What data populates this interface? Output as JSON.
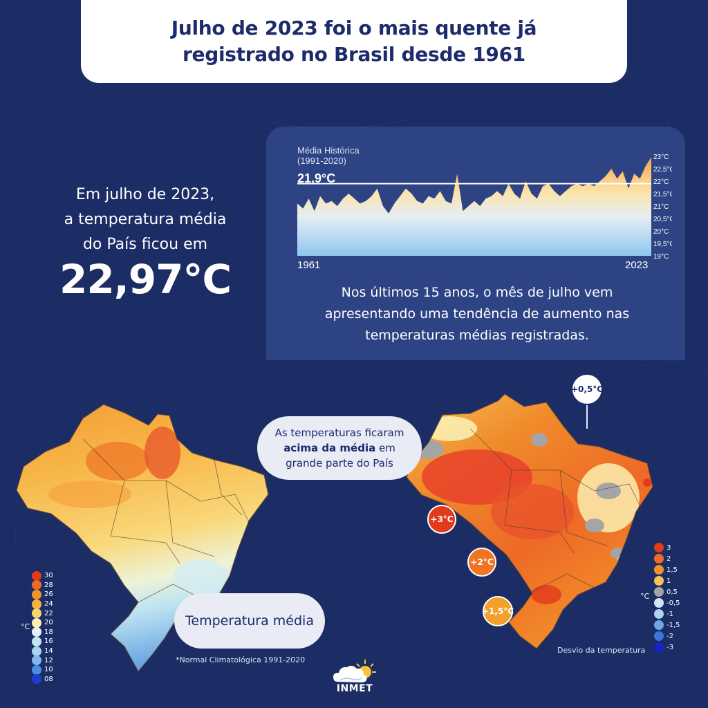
{
  "title": {
    "line1": "Julho de 2023 foi o mais quente já",
    "line2": "registrado no Brasil desde 1961"
  },
  "intro": {
    "line1": "Em julho de 2023,",
    "line2": "a temperatura média",
    "line3": "do País ficou em",
    "value": "22,97°C"
  },
  "chart_data": {
    "type": "area",
    "x_start_label": "1961",
    "x_end_label": "2023",
    "reference_label_line1": "Média Histórica",
    "reference_label_line2": "(1991-2020)",
    "reference_value_label": "21,9°C",
    "reference_value": 21.9,
    "ylim": [
      19,
      23
    ],
    "y_ticks": [
      "23°C",
      "22,5°C",
      "22°C",
      "21,5°C",
      "21°C",
      "20,5°C",
      "20°C",
      "19,5°C",
      "19°C"
    ],
    "years": [
      1961,
      2023
    ],
    "values": [
      21.1,
      20.9,
      21.3,
      20.8,
      21.4,
      21.1,
      21.2,
      21.0,
      21.3,
      21.5,
      21.3,
      21.1,
      21.2,
      21.4,
      21.7,
      21.0,
      20.7,
      21.1,
      21.4,
      21.7,
      21.5,
      21.2,
      21.1,
      21.4,
      21.3,
      21.6,
      21.2,
      21.1,
      22.3,
      20.8,
      21.0,
      21.2,
      21.0,
      21.3,
      21.4,
      21.6,
      21.4,
      21.9,
      21.5,
      21.3,
      22.0,
      21.5,
      21.3,
      21.8,
      21.9,
      21.6,
      21.4,
      21.6,
      21.8,
      21.9,
      21.8,
      21.9,
      21.8,
      22.0,
      22.2,
      22.5,
      22.1,
      22.4,
      21.7,
      22.3,
      22.1,
      22.6,
      22.97
    ]
  },
  "panel_text": {
    "line1": "Nos últimos 15 anos, o mês de julho vem",
    "line2": "apresentando uma tendência de aumento nas",
    "line3": "temperaturas médias registradas."
  },
  "callout_main": {
    "line1": "As temperaturas ficaram",
    "line2_bold": "acima da média",
    "line2_rest": " em",
    "line3": "grande parte do País"
  },
  "callout_temp": "Temperatura média",
  "bubbles": {
    "b3": "+3°C",
    "b2": "+2°C",
    "b15": "+1,5°C",
    "b05": "+0,5°C"
  },
  "legend_left": {
    "unit": "°C",
    "labels": [
      "30",
      "28",
      "26",
      "24",
      "22",
      "20",
      "18",
      "16",
      "14",
      "12",
      "10",
      "08"
    ],
    "colors": [
      "#e33a1b",
      "#ee6a26",
      "#f2922c",
      "#f6b43d",
      "#f9d468",
      "#fbeeb0",
      "#e4f2f4",
      "#c6e5f2",
      "#a8d4ef",
      "#7eb7e8",
      "#4b8de0",
      "#1b3fd0"
    ]
  },
  "legend_right": {
    "unit": "°C",
    "labels": [
      "3",
      "2",
      "1,5",
      "1",
      "0,5",
      "-0,5",
      "-1",
      "-1,5",
      "-2",
      "-3"
    ],
    "colors": [
      "#e33a1b",
      "#ee6a26",
      "#f2922c",
      "#f6c25a",
      "#a5a5a5",
      "#cfe6f1",
      "#a9d3ef",
      "#6da7e6",
      "#3a76dc",
      "#1225c8"
    ]
  },
  "footnote": "*Normal Climatológica 1991-2020",
  "deviation_label": "Desvio da temperatura",
  "logo_text": "INMET"
}
